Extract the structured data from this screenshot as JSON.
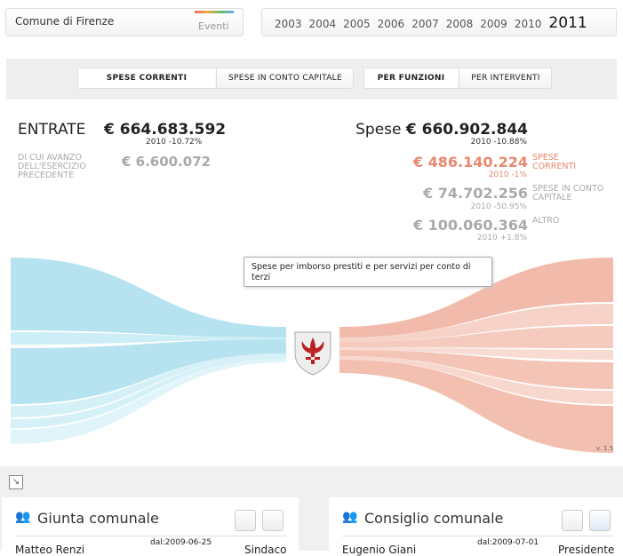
{
  "header": {
    "city": "Comune di Firenze",
    "events": "Eventi",
    "years": [
      "2003",
      "2004",
      "2005",
      "2006",
      "2007",
      "2008",
      "2009",
      "2010",
      "2011"
    ]
  },
  "tabs": {
    "type": [
      "SPESE CORRENTI",
      "SPESE IN CONTO CAPITALE"
    ],
    "view": [
      "PER FUNZIONI",
      "PER INTERVENTI"
    ]
  },
  "entrate": {
    "label": "ENTRATE",
    "amount": "€ 664.683.592",
    "change": "2010 -10.72%",
    "avanzo_label": "DI CUI AVANZO DELL'ESERCIZIO PRECEDENTE",
    "avanzo_amount": "€ 6.600.072"
  },
  "spese": {
    "label": "Spese",
    "amount": "€ 660.902.844",
    "change": "2010 -10.88%",
    "items": [
      {
        "amount": "€ 486.140.224",
        "change": "2010 -1%",
        "label": "SPESE CORRENTI"
      },
      {
        "amount": "€ 74.702.256",
        "change": "2010 -50.95%",
        "label": "SPESE IN CONTO CAPITALE"
      },
      {
        "amount": "€ 100.060.364",
        "change": "2010 +1.8%",
        "label": "ALTRO"
      }
    ]
  },
  "tooltip": "Spese per imborso prestiti e per servizi per conto di terzi",
  "version": "v. 1.5",
  "panels": [
    {
      "title": "Giunta comunale",
      "name": "Matteo Renzi",
      "since": "dal:2009-06-25",
      "role": "Sindaco"
    },
    {
      "title": "Consiglio comunale",
      "name": "Eugenio Giani",
      "since": "dal:2009-07-01",
      "role": "Presidente"
    }
  ]
}
